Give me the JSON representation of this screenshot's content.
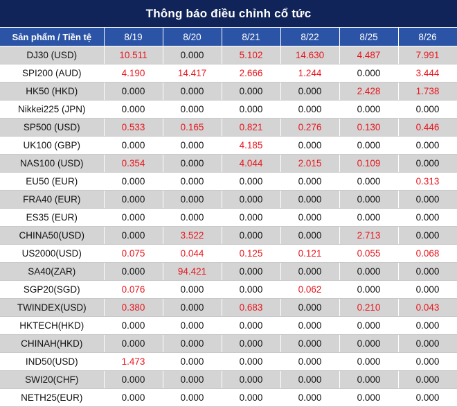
{
  "title": "Thông báo điều chỉnh cổ tức",
  "header": {
    "product_label": "Sản phẩm / Tiền tệ",
    "dates": [
      "8/19",
      "8/20",
      "8/21",
      "8/22",
      "8/25",
      "8/26"
    ]
  },
  "colors": {
    "title_bg": "#112459",
    "header_bg": "#2b54a6",
    "nonzero_value": "#e8161d",
    "shaded_row": "#d4d4d4"
  },
  "rows": [
    {
      "product": "DJ30 (USD)",
      "values": [
        "10.511",
        "0.000",
        "5.102",
        "14.630",
        "4.487",
        "7.991"
      ]
    },
    {
      "product": "SPI200 (AUD)",
      "values": [
        "4.190",
        "14.417",
        "2.666",
        "1.244",
        "0.000",
        "3.444"
      ]
    },
    {
      "product": "HK50 (HKD)",
      "values": [
        "0.000",
        "0.000",
        "0.000",
        "0.000",
        "2.428",
        "1.738"
      ]
    },
    {
      "product": "Nikkei225 (JPN)",
      "values": [
        "0.000",
        "0.000",
        "0.000",
        "0.000",
        "0.000",
        "0.000"
      ]
    },
    {
      "product": "SP500 (USD)",
      "values": [
        "0.533",
        "0.165",
        "0.821",
        "0.276",
        "0.130",
        "0.446"
      ]
    },
    {
      "product": "UK100 (GBP)",
      "values": [
        "0.000",
        "0.000",
        "4.185",
        "0.000",
        "0.000",
        "0.000"
      ]
    },
    {
      "product": "NAS100 (USD)",
      "values": [
        "0.354",
        "0.000",
        "4.044",
        "2.015",
        "0.109",
        "0.000"
      ]
    },
    {
      "product": "EU50 (EUR)",
      "values": [
        "0.000",
        "0.000",
        "0.000",
        "0.000",
        "0.000",
        "0.313"
      ]
    },
    {
      "product": "FRA40 (EUR)",
      "values": [
        "0.000",
        "0.000",
        "0.000",
        "0.000",
        "0.000",
        "0.000"
      ]
    },
    {
      "product": "ES35 (EUR)",
      "values": [
        "0.000",
        "0.000",
        "0.000",
        "0.000",
        "0.000",
        "0.000"
      ]
    },
    {
      "product": "CHINA50(USD)",
      "values": [
        "0.000",
        "3.522",
        "0.000",
        "0.000",
        "2.713",
        "0.000"
      ]
    },
    {
      "product": "US2000(USD)",
      "values": [
        "0.075",
        "0.044",
        "0.125",
        "0.121",
        "0.055",
        "0.068"
      ]
    },
    {
      "product": "SA40(ZAR)",
      "values": [
        "0.000",
        "94.421",
        "0.000",
        "0.000",
        "0.000",
        "0.000"
      ]
    },
    {
      "product": "SGP20(SGD)",
      "values": [
        "0.076",
        "0.000",
        "0.000",
        "0.062",
        "0.000",
        "0.000"
      ]
    },
    {
      "product": "TWINDEX(USD)",
      "values": [
        "0.380",
        "0.000",
        "0.683",
        "0.000",
        "0.210",
        "0.043"
      ]
    },
    {
      "product": "HKTECH(HKD)",
      "values": [
        "0.000",
        "0.000",
        "0.000",
        "0.000",
        "0.000",
        "0.000"
      ]
    },
    {
      "product": "CHINAH(HKD)",
      "values": [
        "0.000",
        "0.000",
        "0.000",
        "0.000",
        "0.000",
        "0.000"
      ]
    },
    {
      "product": "IND50(USD)",
      "values": [
        "1.473",
        "0.000",
        "0.000",
        "0.000",
        "0.000",
        "0.000"
      ]
    },
    {
      "product": "SWI20(CHF)",
      "values": [
        "0.000",
        "0.000",
        "0.000",
        "0.000",
        "0.000",
        "0.000"
      ]
    },
    {
      "product": "NETH25(EUR)",
      "values": [
        "0.000",
        "0.000",
        "0.000",
        "0.000",
        "0.000",
        "0.000"
      ]
    }
  ]
}
